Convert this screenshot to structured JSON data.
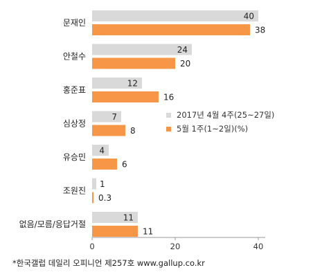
{
  "chart_data": {
    "type": "bar",
    "orientation": "horizontal",
    "categories": [
      "문재인",
      "안철수",
      "홍준표",
      "심상정",
      "유승민",
      "조원진",
      "없음/모름/응답거절"
    ],
    "series": [
      {
        "name": "2017년 4월 4주(25~27일)",
        "values": [
          40,
          24,
          12,
          7,
          4,
          1,
          11
        ],
        "labels": [
          "40",
          "24",
          "12",
          "7",
          "4",
          "1",
          "11"
        ],
        "color": "#d9d9d9"
      },
      {
        "name": "5월 1주(1~2일)(%)",
        "values": [
          38,
          20,
          16,
          8,
          6,
          0.3,
          11
        ],
        "labels": [
          "38",
          "20",
          "16",
          "8",
          "6",
          "0.3",
          "11"
        ],
        "color": "#f79646"
      }
    ],
    "x_ticks": [
      "0",
      "20",
      "40"
    ],
    "xlim": [
      0,
      40
    ],
    "grid": false,
    "legend_position": "right"
  },
  "footer": "*한국갤럽 데일리 오피니언 제257호 www.gallup.co.kr"
}
